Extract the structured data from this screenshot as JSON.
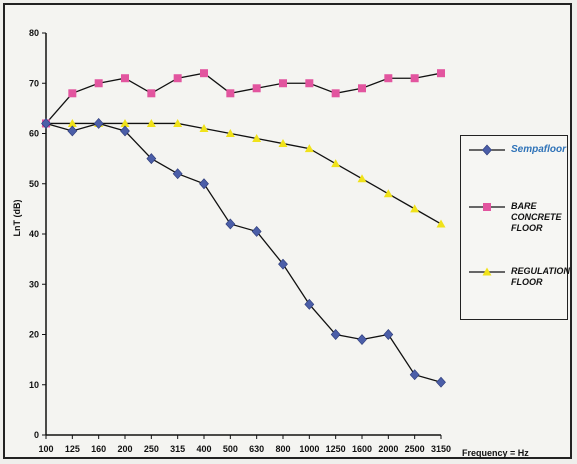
{
  "chart_data": {
    "type": "line",
    "title": "",
    "xlabel": "Frequency = Hz",
    "ylabel": "LnT (dB)",
    "ylim": [
      0,
      80
    ],
    "yticks": [
      "0",
      "10",
      "20",
      "30",
      "40",
      "50",
      "60",
      "70",
      "80"
    ],
    "categories": [
      "100",
      "125",
      "160",
      "200",
      "250",
      "315",
      "400",
      "500",
      "630",
      "800",
      "1000",
      "1250",
      "1600",
      "2000",
      "2500",
      "3150"
    ],
    "grid": false,
    "legend_position": "right",
    "series": [
      {
        "name": "Sempafloor",
        "color": "#4b5ea8",
        "marker": "diamond",
        "label_color": "#2f73b8",
        "values": [
          62,
          60.5,
          62,
          60.5,
          55,
          52,
          50,
          42,
          40.5,
          34,
          26,
          20,
          19,
          20,
          12,
          10.5
        ]
      },
      {
        "name": "BARE\nCONCRETE\nFLOOR",
        "color": "#e2559f",
        "marker": "square",
        "label_color": "#111111",
        "values": [
          62,
          68,
          70,
          71,
          68,
          71,
          72,
          68,
          69,
          70,
          70,
          68,
          69,
          71,
          71,
          72
        ]
      },
      {
        "name": "REGULATION\nFLOOR",
        "color": "#f0e21a",
        "marker": "triangle",
        "label_color": "#111111",
        "values": [
          62,
          62,
          62,
          62,
          62,
          62,
          61,
          60,
          59,
          58,
          57,
          54,
          51,
          48,
          45,
          42
        ]
      }
    ]
  }
}
